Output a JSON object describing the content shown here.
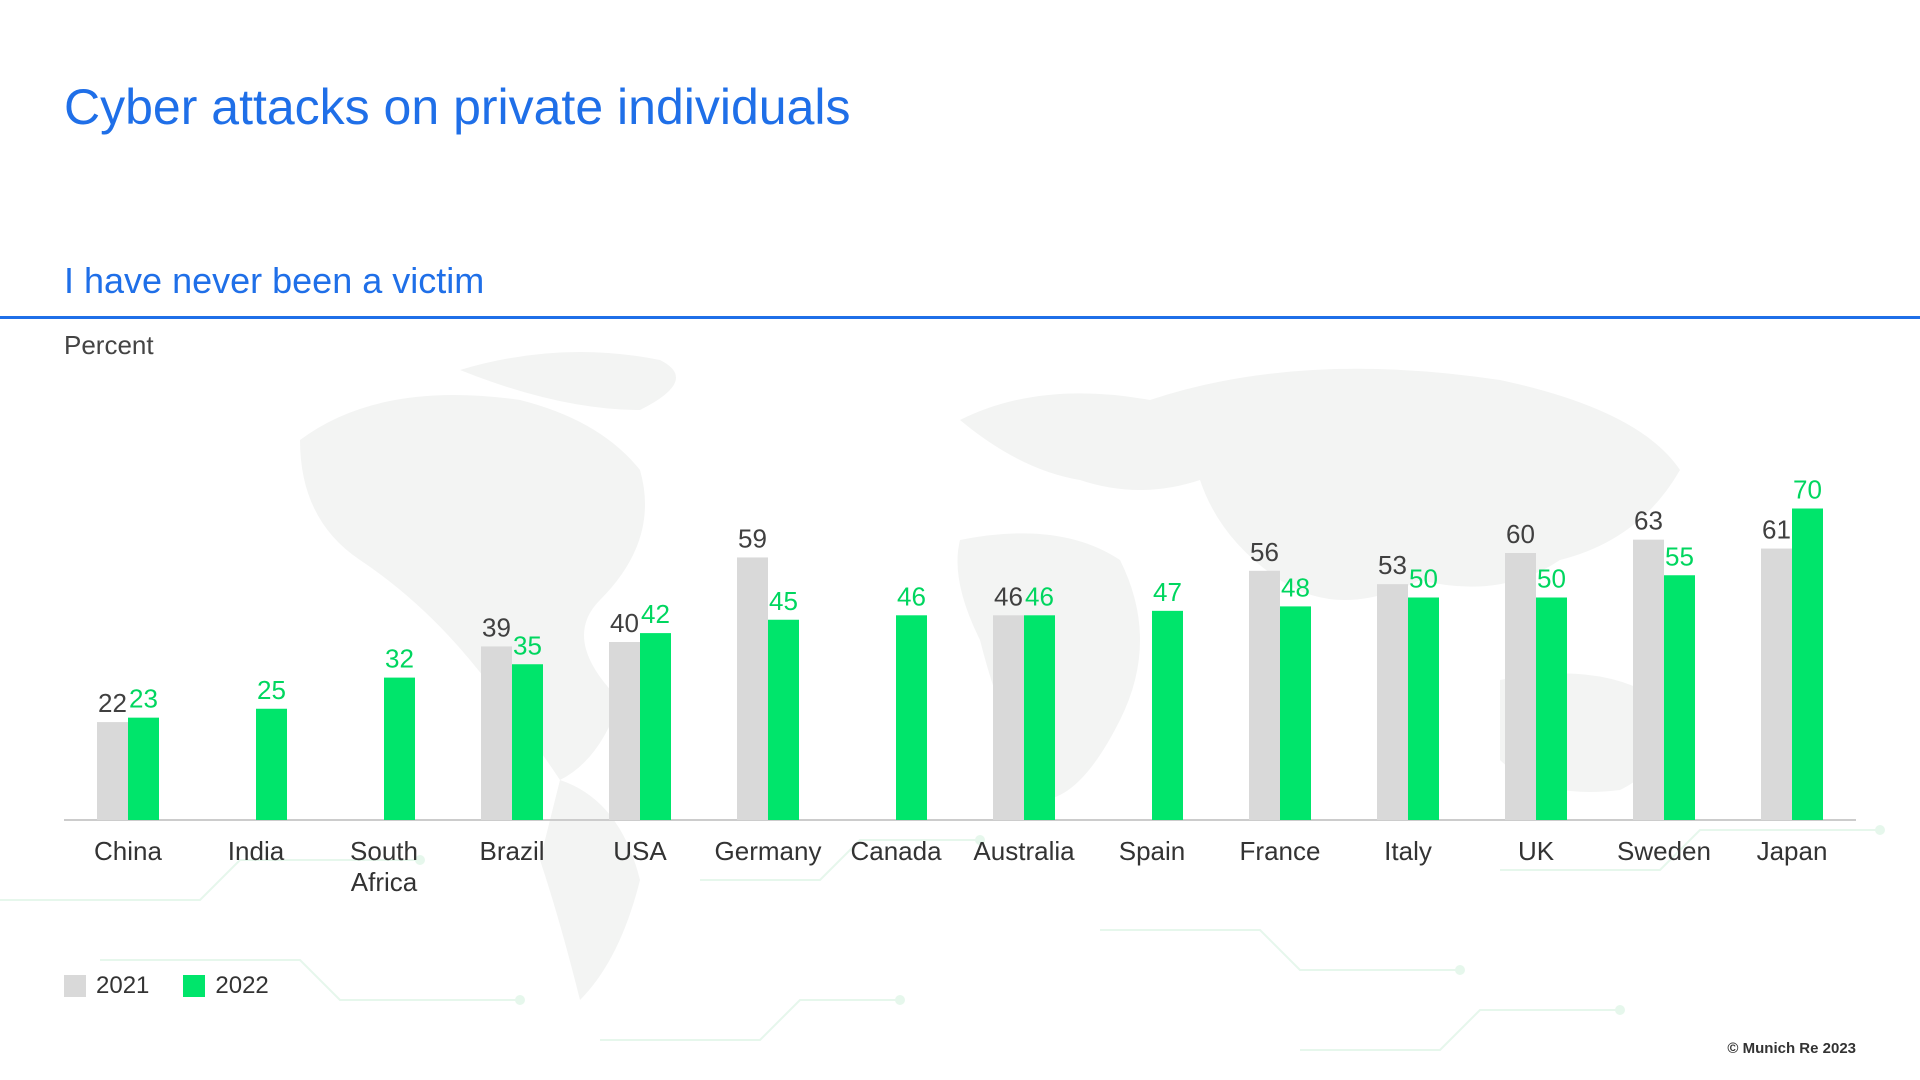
{
  "header": {
    "title": "Cyber attacks on private individuals",
    "subtitle": "I have never been a victim",
    "unit_label": "Percent"
  },
  "legend": [
    {
      "label": "2021",
      "color": "#d9d9d9"
    },
    {
      "label": "2022",
      "color": "#00e56b"
    }
  ],
  "footer": {
    "copyright": "© Munich Re 2023"
  },
  "colors": {
    "accent": "#1f6fe8",
    "series_2021": "#d9d9d9",
    "series_2022": "#00e56b",
    "label_2021": "#404040",
    "label_2022": "#00d65f"
  },
  "chart_data": {
    "type": "bar",
    "title": "I have never been a victim",
    "ylabel": "Percent",
    "ylim": [
      0,
      80
    ],
    "grid": false,
    "legend_position": "bottom-left",
    "categories": [
      "China",
      "India",
      "South Africa",
      "Brazil",
      "USA",
      "Germany",
      "Canada",
      "Australia",
      "Spain",
      "France",
      "Italy",
      "UK",
      "Sweden",
      "Japan"
    ],
    "series": [
      {
        "name": "2021",
        "values": [
          22,
          null,
          null,
          39,
          40,
          59,
          null,
          46,
          null,
          56,
          53,
          60,
          63,
          61
        ]
      },
      {
        "name": "2022",
        "values": [
          23,
          25,
          32,
          35,
          42,
          45,
          46,
          46,
          47,
          48,
          50,
          50,
          55,
          70
        ]
      }
    ]
  }
}
